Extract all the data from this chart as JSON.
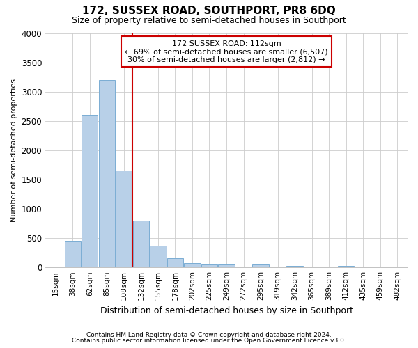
{
  "title": "172, SUSSEX ROAD, SOUTHPORT, PR8 6DQ",
  "subtitle": "Size of property relative to semi-detached houses in Southport",
  "xlabel": "Distribution of semi-detached houses by size in Southport",
  "ylabel": "Number of semi-detached properties",
  "footnote1": "Contains HM Land Registry data © Crown copyright and database right 2024.",
  "footnote2": "Contains public sector information licensed under the Open Government Licence v3.0.",
  "categories": [
    "15sqm",
    "38sqm",
    "62sqm",
    "85sqm",
    "108sqm",
    "132sqm",
    "155sqm",
    "178sqm",
    "202sqm",
    "225sqm",
    "249sqm",
    "272sqm",
    "295sqm",
    "319sqm",
    "342sqm",
    "365sqm",
    "389sqm",
    "412sqm",
    "435sqm",
    "459sqm",
    "482sqm"
  ],
  "values": [
    5,
    450,
    2600,
    3200,
    1650,
    800,
    375,
    160,
    75,
    50,
    50,
    5,
    50,
    5,
    20,
    0,
    0,
    20,
    0,
    0,
    0
  ],
  "bar_color": "#b8d0e8",
  "bar_edge_color": "#7aadd4",
  "highlight_bar_index": 4,
  "highlight_edge_color": "#cc0000",
  "vline_color": "#cc0000",
  "annotation_text": "172 SUSSEX ROAD: 112sqm\n← 69% of semi-detached houses are smaller (6,507)\n30% of semi-detached houses are larger (2,812) →",
  "annotation_box_color": "#ffffff",
  "annotation_box_edge": "#cc0000",
  "ylim": [
    0,
    4000
  ],
  "yticks": [
    0,
    500,
    1000,
    1500,
    2000,
    2500,
    3000,
    3500,
    4000
  ],
  "grid_color": "#cccccc",
  "bg_color": "#ffffff",
  "plot_bg_color": "#ffffff"
}
